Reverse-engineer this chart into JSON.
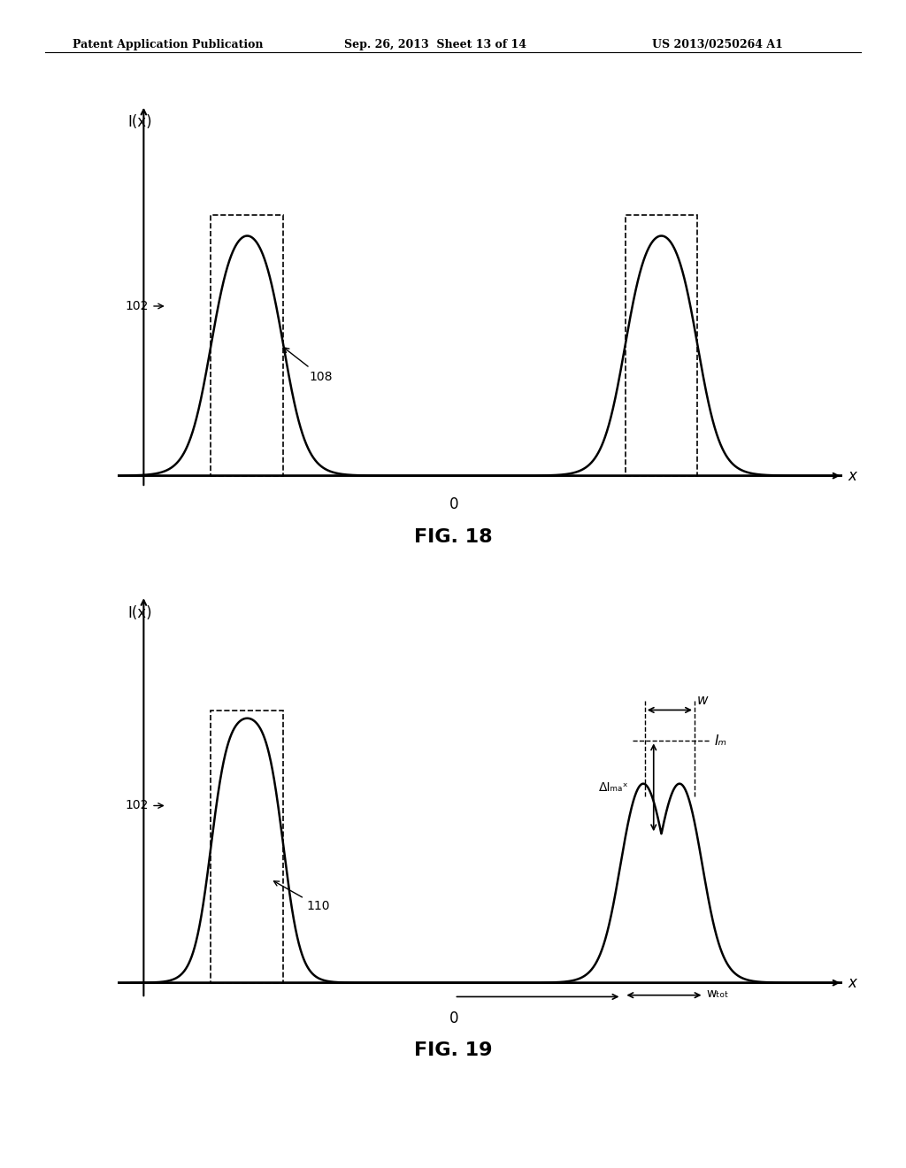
{
  "bg_color": "#ffffff",
  "text_color": "#000000",
  "header_left": "Patent Application Publication",
  "header_center": "Sep. 26, 2013  Sheet 13 of 14",
  "header_right": "US 2013/0250264 A1",
  "fig18_title": "FIG. 18",
  "fig19_title": "FIG. 19",
  "fig18_ylabel": "I(x)",
  "fig19_ylabel": "I(x)",
  "fig18_xlabel": "x",
  "fig19_xlabel": "x"
}
